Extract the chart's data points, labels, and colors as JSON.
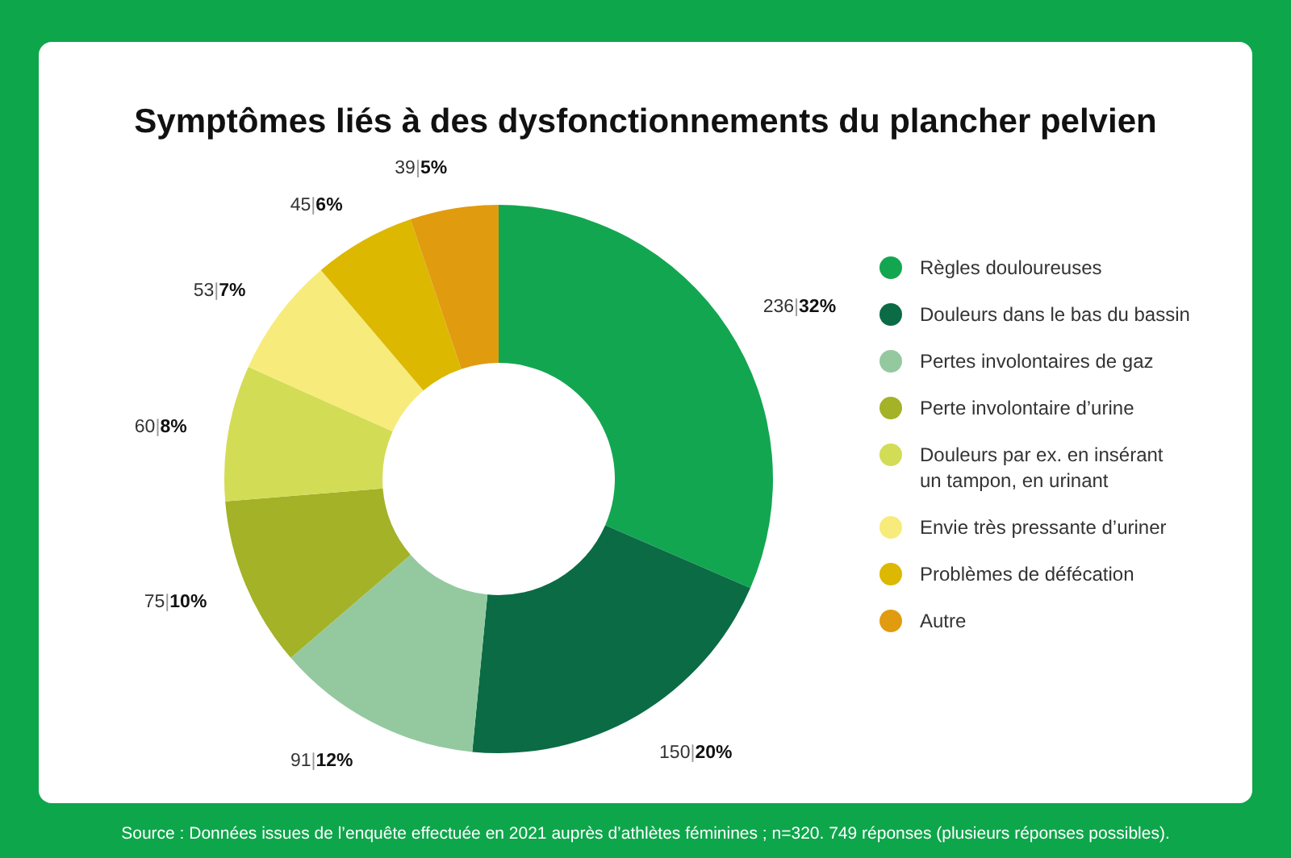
{
  "chart_data": {
    "type": "donut",
    "title": "Symptômes liés à des dysfonctionnements du plancher pelvien",
    "categories": [
      "Règles douloureuses",
      "Douleurs dans le bas du bassin",
      "Pertes involontaires de gaz",
      "Perte involontaire d’urine",
      "Douleurs par ex. en insérant un tampon, en urinant",
      "Envie très pressante d’uriner",
      "Problèmes de défécation",
      "Autre"
    ],
    "values": [
      236,
      150,
      91,
      75,
      60,
      53,
      45,
      39
    ],
    "value_labels": [
      "236|32%",
      "150|20%",
      "91|12%",
      "75|10%",
      "60|8%",
      "53|7%",
      "45|6%",
      "39|5%"
    ],
    "colors": [
      "#13a651",
      "#0b6b45",
      "#94c9a0",
      "#a3b227",
      "#d3dc55",
      "#f7eb7c",
      "#dcb800",
      "#e09b0f"
    ],
    "legend": "right",
    "annotations": [
      "Source : Données issues de l’enquête effectuée en 2021 auprès d’athlètes féminines ; n=320. 749 réponses (plusieurs réponses possibles)."
    ]
  }
}
